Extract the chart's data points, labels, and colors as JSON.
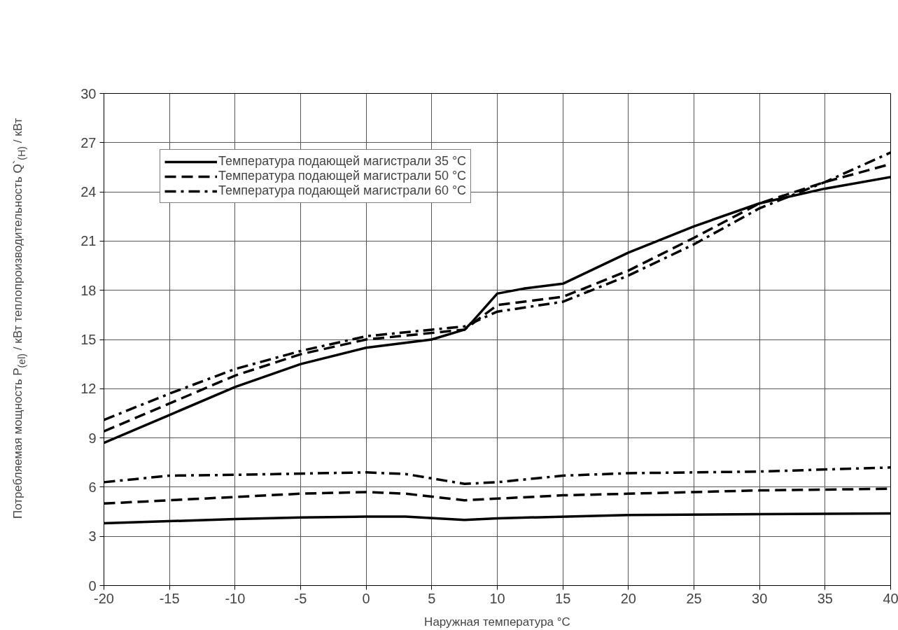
{
  "chart_data": {
    "type": "line",
    "xlabel": "Наружная температура °C",
    "ylabel": "Потребляемая мощность P$_{(el)}$ / кВт теплопроизводительность Q`$_{(H)}$ / кВт",
    "xlim": [
      -20,
      40
    ],
    "xticks": [
      -20,
      -15,
      -10,
      -5,
      0,
      5,
      10,
      15,
      20,
      25,
      30,
      35,
      40
    ],
    "ylim": [
      0,
      30
    ],
    "yticks": [
      0,
      3,
      6,
      9,
      12,
      15,
      18,
      21,
      24,
      27,
      30
    ],
    "grid": true,
    "legend": "top left",
    "marker": "none",
    "series": [
      {
        "name": "Температура подающей магистрали 35 °C",
        "color": "#000000",
        "line_style": "solid",
        "x": [
          -20,
          -15,
          -10,
          -5,
          0,
          5,
          7.5,
          8,
          10,
          12,
          15,
          20,
          25,
          30,
          35,
          40
        ],
        "values": [
          8.7,
          10.4,
          12.1,
          13.5,
          14.5,
          15.0,
          15.6,
          16.0,
          17.8,
          18.1,
          18.4,
          20.3,
          21.9,
          23.3,
          24.2,
          24.9
        ]
      },
      {
        "name": "Температура подающей магистрали 50 °C",
        "color": "#000000",
        "line_style": "dashed",
        "x": [
          -20,
          -15,
          -10,
          -5,
          0,
          5,
          7.5,
          10,
          15,
          20,
          25,
          30,
          35,
          40
        ],
        "values": [
          9.4,
          11.1,
          12.8,
          14.1,
          15.0,
          15.4,
          15.6,
          17.1,
          17.6,
          19.2,
          21.2,
          23.3,
          24.6,
          25.7
        ]
      },
      {
        "name": "Температура подающей магистрали 60 °C",
        "color": "#000000",
        "line_style": "dashdot",
        "x": [
          -20,
          -15,
          -10,
          -5,
          0,
          5,
          7.5,
          10,
          15,
          20,
          25,
          30,
          35,
          40
        ],
        "values": [
          10.1,
          11.7,
          13.2,
          14.3,
          15.2,
          15.6,
          15.8,
          16.7,
          17.3,
          18.9,
          20.8,
          23.0,
          24.6,
          26.4
        ]
      },
      {
        "color": "#000000",
        "line_style": "solid",
        "x": [
          -20,
          -10,
          -5,
          0,
          3,
          7.5,
          10,
          20,
          30,
          40
        ],
        "values": [
          3.8,
          4.05,
          4.15,
          4.2,
          4.2,
          4.0,
          4.1,
          4.3,
          4.35,
          4.4
        ]
      },
      {
        "color": "#000000",
        "line_style": "dashed",
        "x": [
          -20,
          -10,
          -5,
          0,
          3,
          7.5,
          10,
          15,
          20,
          25,
          30,
          40
        ],
        "values": [
          5.0,
          5.4,
          5.6,
          5.7,
          5.6,
          5.2,
          5.3,
          5.5,
          5.6,
          5.7,
          5.8,
          5.9
        ]
      },
      {
        "color": "#000000",
        "line_style": "dashdot",
        "x": [
          -20,
          -15,
          -10,
          0,
          3,
          7.5,
          10,
          15,
          20,
          30,
          40
        ],
        "values": [
          6.3,
          6.7,
          6.75,
          6.9,
          6.8,
          6.2,
          6.3,
          6.7,
          6.85,
          6.95,
          7.2
        ]
      }
    ]
  }
}
